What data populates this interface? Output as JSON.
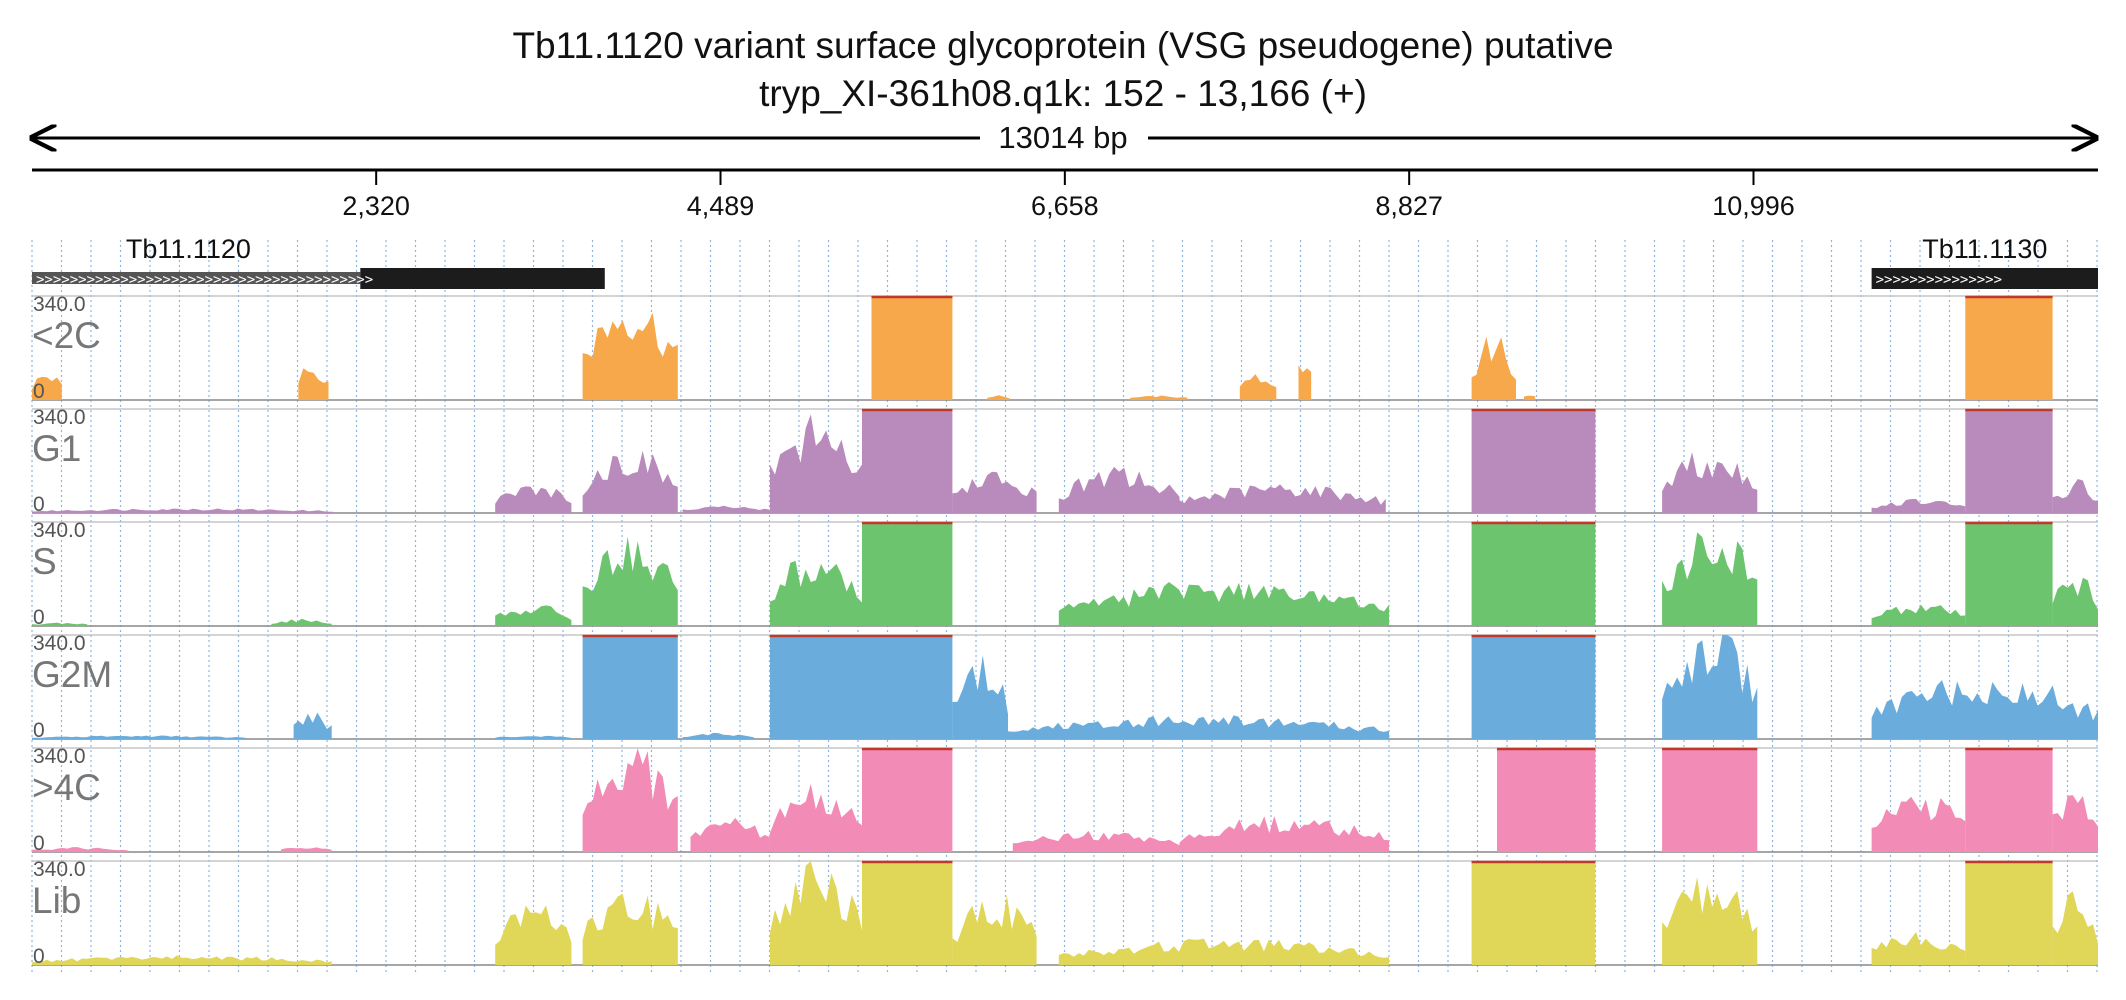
{
  "header": {
    "title": "Tb11.1120  variant surface glycoprotein (VSG  pseudogene)  putative",
    "subtitle": "tryp_XI-361h08.q1k: 152 - 13,166 (+)",
    "length_label": "13014 bp"
  },
  "chart_data": {
    "type": "area",
    "region": {
      "start": 152,
      "end": 13166,
      "strand": "+"
    },
    "x_ticks": [
      {
        "value": 2320,
        "label": "2,320"
      },
      {
        "value": 4489,
        "label": "4,489"
      },
      {
        "value": 6658,
        "label": "6,658"
      },
      {
        "value": 8827,
        "label": "8,827"
      },
      {
        "value": 10996,
        "label": "10,996"
      }
    ],
    "genes": [
      {
        "name": "Tb11.1120",
        "start": 152,
        "end": 3760,
        "utr_end": 2220,
        "strand": "+"
      },
      {
        "name": "Tb11.1130",
        "start": 11740,
        "end": 13166,
        "strand": "+"
      }
    ],
    "ylim": [
      0,
      340
    ],
    "ymax_label": "340.0",
    "ymin_label": "0",
    "grid": "dotted vertical",
    "colors": {
      "clip": "#c0392b",
      "axis": "#000000",
      "gene": "#222222"
    },
    "tracks": [
      {
        "name": "<2C",
        "color": "#f7a84a",
        "segments": [
          {
            "start": 152,
            "end": 340,
            "level": 0.25
          },
          {
            "start": 1830,
            "end": 2020,
            "level": 0.34
          },
          {
            "start": 3620,
            "end": 4220,
            "level": 0.9
          },
          {
            "start": 5440,
            "end": 5950,
            "level": 1.0
          },
          {
            "start": 6170,
            "end": 6310,
            "level": 0.04
          },
          {
            "start": 7070,
            "end": 7430,
            "level": 0.04
          },
          {
            "start": 7760,
            "end": 7990,
            "level": 0.28
          },
          {
            "start": 8130,
            "end": 8210,
            "level": 0.45
          },
          {
            "start": 9220,
            "end": 9500,
            "level": 0.55
          },
          {
            "start": 9550,
            "end": 9620,
            "level": 0.05
          },
          {
            "start": 12330,
            "end": 12880,
            "level": 1.0
          }
        ]
      },
      {
        "name": "G1",
        "color": "#b98abc",
        "segments": [
          {
            "start": 152,
            "end": 2050,
            "level": 0.04
          },
          {
            "start": 3070,
            "end": 3550,
            "level": 0.25
          },
          {
            "start": 3620,
            "end": 4220,
            "level": 0.55
          },
          {
            "start": 4250,
            "end": 4800,
            "level": 0.06
          },
          {
            "start": 4800,
            "end": 5380,
            "level": 0.8
          },
          {
            "start": 5380,
            "end": 5950,
            "level": 1.0
          },
          {
            "start": 5950,
            "end": 6480,
            "level": 0.35
          },
          {
            "start": 6620,
            "end": 7380,
            "level": 0.38
          },
          {
            "start": 7380,
            "end": 8680,
            "level": 0.25
          },
          {
            "start": 9220,
            "end": 10000,
            "level": 1.0
          },
          {
            "start": 10420,
            "end": 11020,
            "level": 0.55
          },
          {
            "start": 11740,
            "end": 12330,
            "level": 0.12
          },
          {
            "start": 12330,
            "end": 12880,
            "level": 1.0
          },
          {
            "start": 12880,
            "end": 13166,
            "level": 0.28
          }
        ]
      },
      {
        "name": "S",
        "color": "#6cc46e",
        "segments": [
          {
            "start": 152,
            "end": 500,
            "level": 0.03
          },
          {
            "start": 1660,
            "end": 2040,
            "level": 0.06
          },
          {
            "start": 3070,
            "end": 3550,
            "level": 0.18
          },
          {
            "start": 3620,
            "end": 4220,
            "level": 0.75
          },
          {
            "start": 4800,
            "end": 5380,
            "level": 0.62
          },
          {
            "start": 5380,
            "end": 5950,
            "level": 1.0
          },
          {
            "start": 6620,
            "end": 8700,
            "level": 0.38
          },
          {
            "start": 9220,
            "end": 10000,
            "level": 1.0
          },
          {
            "start": 10420,
            "end": 11020,
            "level": 0.85
          },
          {
            "start": 11740,
            "end": 12330,
            "level": 0.2
          },
          {
            "start": 12330,
            "end": 12880,
            "level": 1.0
          },
          {
            "start": 12880,
            "end": 13166,
            "level": 0.45
          }
        ]
      },
      {
        "name": "G2M",
        "color": "#6aaddd",
        "segments": [
          {
            "start": 152,
            "end": 1500,
            "level": 0.03
          },
          {
            "start": 1800,
            "end": 2040,
            "level": 0.22
          },
          {
            "start": 3070,
            "end": 3550,
            "level": 0.03
          },
          {
            "start": 3620,
            "end": 4220,
            "level": 1.0
          },
          {
            "start": 4250,
            "end": 4700,
            "level": 0.05
          },
          {
            "start": 4800,
            "end": 5380,
            "level": 1.0
          },
          {
            "start": 5380,
            "end": 5950,
            "level": 1.0
          },
          {
            "start": 5950,
            "end": 6300,
            "level": 0.7
          },
          {
            "start": 6300,
            "end": 8700,
            "level": 0.2
          },
          {
            "start": 9220,
            "end": 10000,
            "level": 1.0
          },
          {
            "start": 10420,
            "end": 11020,
            "level": 0.95
          },
          {
            "start": 11740,
            "end": 13166,
            "level": 0.55
          }
        ]
      },
      {
        "name": ">4C",
        "color": "#f38bb7",
        "segments": [
          {
            "start": 152,
            "end": 760,
            "level": 0.04
          },
          {
            "start": 1720,
            "end": 2040,
            "level": 0.05
          },
          {
            "start": 3620,
            "end": 4220,
            "level": 0.95
          },
          {
            "start": 4300,
            "end": 4800,
            "level": 0.3
          },
          {
            "start": 4800,
            "end": 5380,
            "level": 0.55
          },
          {
            "start": 5380,
            "end": 5950,
            "level": 1.0
          },
          {
            "start": 6330,
            "end": 7380,
            "level": 0.18
          },
          {
            "start": 7380,
            "end": 8700,
            "level": 0.3
          },
          {
            "start": 9380,
            "end": 10000,
            "level": 1.0
          },
          {
            "start": 10420,
            "end": 11020,
            "level": 1.0
          },
          {
            "start": 11740,
            "end": 12330,
            "level": 0.5
          },
          {
            "start": 12330,
            "end": 12880,
            "level": 1.0
          },
          {
            "start": 12880,
            "end": 13166,
            "level": 0.6
          }
        ]
      },
      {
        "name": "Lib",
        "color": "#e0d657",
        "segments": [
          {
            "start": 152,
            "end": 2040,
            "level": 0.08
          },
          {
            "start": 3070,
            "end": 3550,
            "level": 0.55
          },
          {
            "start": 3620,
            "end": 4220,
            "level": 0.62
          },
          {
            "start": 4800,
            "end": 5380,
            "level": 0.85
          },
          {
            "start": 5380,
            "end": 5950,
            "level": 1.0
          },
          {
            "start": 5950,
            "end": 6480,
            "level": 0.6
          },
          {
            "start": 6620,
            "end": 8700,
            "level": 0.22
          },
          {
            "start": 9220,
            "end": 10000,
            "level": 1.0
          },
          {
            "start": 10420,
            "end": 11020,
            "level": 0.75
          },
          {
            "start": 11740,
            "end": 12330,
            "level": 0.28
          },
          {
            "start": 12330,
            "end": 12880,
            "level": 1.0
          },
          {
            "start": 12880,
            "end": 13166,
            "level": 0.6
          }
        ]
      }
    ]
  }
}
